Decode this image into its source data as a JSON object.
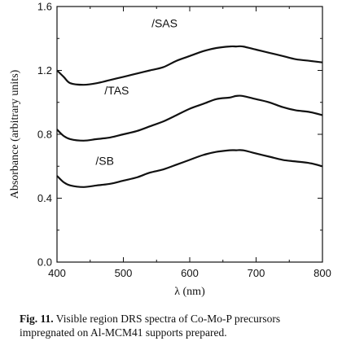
{
  "chart_data": {
    "type": "line",
    "xlabel": "λ (nm)",
    "ylabel": "Absorbance (arbitrary units)",
    "xlim": [
      400,
      800
    ],
    "ylim": [
      0.0,
      1.6
    ],
    "xticks": [
      400,
      500,
      600,
      700,
      800
    ],
    "yticks": [
      0.0,
      0.4,
      0.8,
      1.2,
      1.6
    ],
    "xtick_labels": [
      "400",
      "500",
      "600",
      "700",
      "800"
    ],
    "ytick_labels": [
      "0.0",
      "0.4",
      "0.8",
      "1.2",
      "1.6"
    ],
    "grid": false,
    "series": [
      {
        "name": "/SAS",
        "x": [
          400,
          410,
          420,
          440,
          460,
          480,
          500,
          520,
          540,
          560,
          580,
          600,
          620,
          640,
          660,
          670,
          680,
          700,
          720,
          740,
          760,
          780,
          800
        ],
        "y": [
          1.2,
          1.16,
          1.12,
          1.11,
          1.12,
          1.14,
          1.16,
          1.18,
          1.2,
          1.22,
          1.26,
          1.29,
          1.32,
          1.34,
          1.35,
          1.35,
          1.35,
          1.33,
          1.31,
          1.29,
          1.27,
          1.26,
          1.25
        ]
      },
      {
        "name": "/TAS",
        "x": [
          400,
          410,
          420,
          440,
          460,
          480,
          500,
          520,
          540,
          560,
          580,
          600,
          620,
          640,
          660,
          670,
          680,
          700,
          720,
          740,
          760,
          780,
          800
        ],
        "y": [
          0.83,
          0.79,
          0.77,
          0.76,
          0.77,
          0.78,
          0.8,
          0.82,
          0.85,
          0.88,
          0.92,
          0.96,
          0.99,
          1.02,
          1.03,
          1.04,
          1.04,
          1.02,
          1.0,
          0.97,
          0.95,
          0.94,
          0.92
        ]
      },
      {
        "name": "/SB",
        "x": [
          400,
          410,
          420,
          440,
          460,
          480,
          500,
          520,
          540,
          560,
          580,
          600,
          620,
          640,
          660,
          670,
          680,
          700,
          720,
          740,
          760,
          780,
          800
        ],
        "y": [
          0.54,
          0.5,
          0.48,
          0.47,
          0.48,
          0.49,
          0.51,
          0.53,
          0.56,
          0.58,
          0.61,
          0.64,
          0.67,
          0.69,
          0.7,
          0.7,
          0.7,
          0.68,
          0.66,
          0.64,
          0.63,
          0.62,
          0.6
        ]
      }
    ]
  },
  "caption": {
    "label": "Fig. 11.",
    "text": " Visible region DRS spectra of Co-Mo-P precursors impregnated on Al-MCM41 supports prepared."
  }
}
